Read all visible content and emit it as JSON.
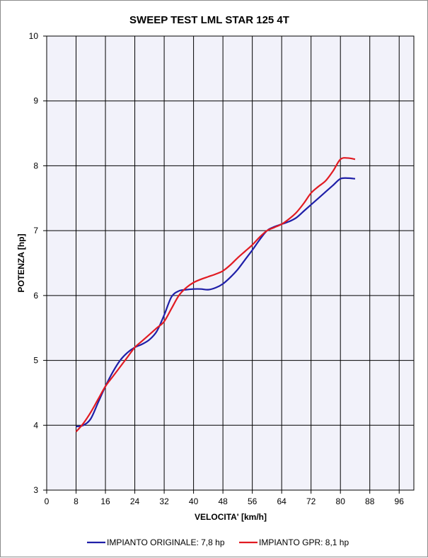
{
  "chart_data": {
    "type": "line",
    "title": "SWEEP TEST LML STAR 125 4T",
    "xlabel": "VELOCITA'  [km/h]",
    "ylabel": "POTENZA [hp]",
    "xlim": [
      0,
      100
    ],
    "ylim": [
      3,
      10
    ],
    "x_ticks": [
      "0",
      "8",
      "16",
      "24",
      "32",
      "40",
      "48",
      "56",
      "64",
      "72",
      "80",
      "88",
      "96"
    ],
    "x_tick_values": [
      0,
      8,
      16,
      24,
      32,
      40,
      48,
      56,
      64,
      72,
      80,
      88,
      96
    ],
    "y_ticks": [
      "3",
      "4",
      "5",
      "6",
      "7",
      "8",
      "9",
      "10"
    ],
    "y_tick_values": [
      3,
      4,
      5,
      6,
      7,
      8,
      9,
      10
    ],
    "grid": true,
    "legend_position": "bottom",
    "series": [
      {
        "name": "IMPIANTO ORIGINALE: 7,8 hp",
        "color": "#1f1fa8",
        "x": [
          8,
          10,
          12,
          14,
          16,
          18,
          20,
          22,
          24,
          26,
          28,
          30,
          32,
          34,
          36,
          38,
          40,
          42,
          44,
          46,
          48,
          50,
          52,
          54,
          56,
          58,
          60,
          62,
          64,
          66,
          68,
          70,
          72,
          74,
          76,
          78,
          80,
          82,
          84
        ],
        "y": [
          3.98,
          4.0,
          4.1,
          4.35,
          4.6,
          4.82,
          5.0,
          5.12,
          5.2,
          5.25,
          5.32,
          5.45,
          5.7,
          5.98,
          6.07,
          6.09,
          6.1,
          6.1,
          6.09,
          6.12,
          6.18,
          6.28,
          6.4,
          6.55,
          6.7,
          6.86,
          7.0,
          7.06,
          7.1,
          7.14,
          7.2,
          7.3,
          7.4,
          7.5,
          7.6,
          7.7,
          7.8,
          7.81,
          7.8
        ]
      },
      {
        "name": "IMPIANTO GPR: 8,1 hp",
        "color": "#e11b22",
        "x": [
          8,
          10,
          12,
          14,
          16,
          18,
          20,
          22,
          24,
          26,
          28,
          30,
          32,
          34,
          36,
          38,
          40,
          42,
          44,
          46,
          48,
          50,
          52,
          54,
          56,
          58,
          60,
          62,
          64,
          66,
          68,
          70,
          72,
          74,
          76,
          78,
          80,
          82,
          84
        ],
        "y": [
          3.9,
          4.03,
          4.2,
          4.4,
          4.6,
          4.75,
          4.9,
          5.05,
          5.2,
          5.3,
          5.4,
          5.5,
          5.6,
          5.8,
          6.0,
          6.12,
          6.2,
          6.25,
          6.29,
          6.33,
          6.38,
          6.47,
          6.58,
          6.68,
          6.78,
          6.9,
          7.0,
          7.05,
          7.1,
          7.18,
          7.28,
          7.42,
          7.58,
          7.68,
          7.77,
          7.92,
          8.1,
          8.12,
          8.1
        ]
      }
    ]
  }
}
